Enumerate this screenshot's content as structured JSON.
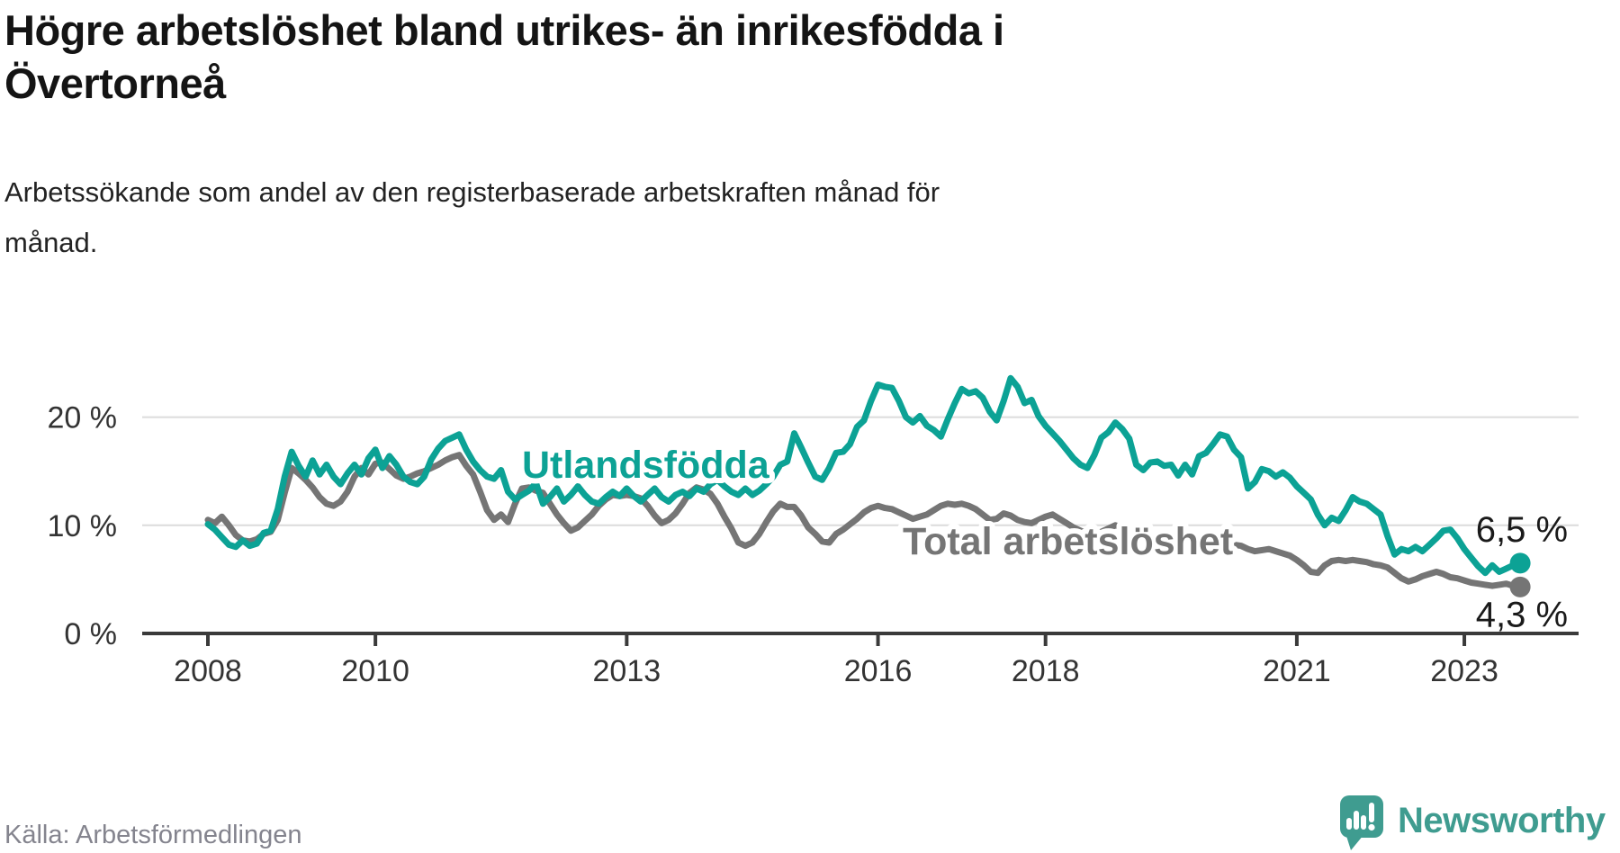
{
  "page": {
    "title_line1": "Högre arbetslöshet bland utrikes- än inrikesfödda i",
    "title_line2": "Övertorneå",
    "subtitle_line1": "Arbetssökande som andel av den registerbaserade arbetskraften månad för",
    "subtitle_line2": "månad.",
    "source": "Källa: Arbetsförmedlingen",
    "branding": "Newsworthy"
  },
  "colors": {
    "accent_teal": "#0ca295",
    "line_gray": "#757575",
    "grid": "#dcdcdc",
    "axis": "#3a3a3a",
    "tick_text": "#333333",
    "value_label_text": "#1a1a1a",
    "brand_teal": "#3f9c90",
    "source_text": "#84848e"
  },
  "chart_data": {
    "type": "line",
    "title": "Högre arbetslöshet bland utrikes- än inrikesfödda i Övertorneå",
    "subtitle": "Arbetssökande som andel av den registerbaserade arbetskraften månad för månad.",
    "xlabel": "",
    "ylabel": "",
    "x_unit": "months",
    "x_start_year": 2008,
    "x_end_label": "sep 2023",
    "ylim": [
      0,
      25
    ],
    "grid": "horizontal",
    "legend_position": "inline-labels",
    "x_ticks": [
      {
        "value": 2008,
        "label": "2008"
      },
      {
        "value": 2010,
        "label": "2010"
      },
      {
        "value": 2013,
        "label": "2013"
      },
      {
        "value": 2016,
        "label": "2016"
      },
      {
        "value": 2018,
        "label": "2018"
      },
      {
        "value": 2021,
        "label": "2021"
      },
      {
        "value": 2023,
        "label": "2023"
      }
    ],
    "y_ticks": [
      {
        "value": 0,
        "label": "0 %"
      },
      {
        "value": 10,
        "label": "10 %"
      },
      {
        "value": 20,
        "label": "20 %"
      }
    ],
    "series": [
      {
        "name": "Utlandsfödda",
        "slug": "utlandsfodda",
        "color": "#0ca295",
        "end_label": "6,5 %",
        "end_value": 6.5,
        "values": [
          10.1,
          9.6,
          8.9,
          8.2,
          8.0,
          8.6,
          8.1,
          8.3,
          9.3,
          9.5,
          11.5,
          14.5,
          16.8,
          15.5,
          14.5,
          16.0,
          14.7,
          15.6,
          14.5,
          13.8,
          14.8,
          15.6,
          14.7,
          16.2,
          17.0,
          15.3,
          16.4,
          15.6,
          14.5,
          14.0,
          13.8,
          14.5,
          16.1,
          17.1,
          17.8,
          18.1,
          18.4,
          17.0,
          15.9,
          15.1,
          14.5,
          14.3,
          15.1,
          13.1,
          12.4,
          12.8,
          13.2,
          13.9,
          12.0,
          12.6,
          13.4,
          12.2,
          12.8,
          13.6,
          12.8,
          12.2,
          12.0,
          12.6,
          13.1,
          12.7,
          13.4,
          12.7,
          12.2,
          12.8,
          13.4,
          12.6,
          12.2,
          12.8,
          13.1,
          12.7,
          13.4,
          13.1,
          13.8,
          14.2,
          13.6,
          13.1,
          12.8,
          13.4,
          12.8,
          13.2,
          13.8,
          14.5,
          15.6,
          15.9,
          18.5,
          17.2,
          15.8,
          14.5,
          14.2,
          15.3,
          16.7,
          16.8,
          17.5,
          19.1,
          19.7,
          21.5,
          23.0,
          22.8,
          22.7,
          21.5,
          20.0,
          19.5,
          20.1,
          19.2,
          18.8,
          18.2,
          19.8,
          21.3,
          22.6,
          22.2,
          22.4,
          21.8,
          20.5,
          19.7,
          21.5,
          23.6,
          22.8,
          21.3,
          21.6,
          20.1,
          19.2,
          18.5,
          17.8,
          17.0,
          16.2,
          15.6,
          15.3,
          16.5,
          18.1,
          18.6,
          19.5,
          18.9,
          18.0,
          15.6,
          15.1,
          15.8,
          15.9,
          15.5,
          15.6,
          14.6,
          15.6,
          14.7,
          16.4,
          16.7,
          17.5,
          18.4,
          18.2,
          17.0,
          16.3,
          13.4,
          14.0,
          15.2,
          15.0,
          14.5,
          14.9,
          14.4,
          13.6,
          13.0,
          12.4,
          11.0,
          10.0,
          10.7,
          10.4,
          11.4,
          12.6,
          12.2,
          12.0,
          11.5,
          11.0,
          9.0,
          7.3,
          7.8,
          7.6,
          8.0,
          7.6,
          8.2,
          8.8,
          9.5,
          9.6,
          8.8,
          7.8,
          7.0,
          6.2,
          5.6,
          6.3,
          5.7,
          6.0,
          6.3,
          6.5
        ]
      },
      {
        "name": "Total arbetslöshet",
        "slug": "total-arbetsloshet",
        "color": "#757575",
        "end_label": "4,3 %",
        "end_value": 4.3,
        "values": [
          10.5,
          10.2,
          10.8,
          10.0,
          9.1,
          8.6,
          8.5,
          8.7,
          9.2,
          9.4,
          10.5,
          13.0,
          15.3,
          14.8,
          14.2,
          13.5,
          12.6,
          12.0,
          11.8,
          12.2,
          13.1,
          14.5,
          15.3,
          14.7,
          15.7,
          15.8,
          15.2,
          14.6,
          14.3,
          14.5,
          14.8,
          15.0,
          15.3,
          15.6,
          16.0,
          16.3,
          16.5,
          15.5,
          14.7,
          13.1,
          11.4,
          10.5,
          11.0,
          10.3,
          12.0,
          13.4,
          13.5,
          13.2,
          13.0,
          12.0,
          11.0,
          10.2,
          9.5,
          9.8,
          10.4,
          11.0,
          11.8,
          12.4,
          12.8,
          12.7,
          12.8,
          12.7,
          12.5,
          11.8,
          10.9,
          10.2,
          10.5,
          11.1,
          12.0,
          13.0,
          13.5,
          13.3,
          12.9,
          12.0,
          10.8,
          9.7,
          8.4,
          8.1,
          8.4,
          9.2,
          10.3,
          11.3,
          12.0,
          11.7,
          11.7,
          10.9,
          9.8,
          9.2,
          8.5,
          8.4,
          9.2,
          9.6,
          10.1,
          10.6,
          11.2,
          11.6,
          11.8,
          11.6,
          11.5,
          11.2,
          10.9,
          10.6,
          10.8,
          11.0,
          11.4,
          11.8,
          12.0,
          11.9,
          12.0,
          11.8,
          11.5,
          11.0,
          10.5,
          10.6,
          11.1,
          10.9,
          10.5,
          10.3,
          10.2,
          10.5,
          10.8,
          11.0,
          10.6,
          10.2,
          9.8,
          9.5,
          9.2,
          9.0,
          9.4,
          9.7,
          10.0,
          9.8,
          9.4,
          9.0,
          8.7,
          8.4,
          8.2,
          8.0,
          7.8,
          7.6,
          7.5,
          7.4,
          7.5,
          7.7,
          7.9,
          8.0,
          8.1,
          8.2,
          8.1,
          7.8,
          7.6,
          7.7,
          7.8,
          7.6,
          7.4,
          7.2,
          6.8,
          6.3,
          5.7,
          5.6,
          6.3,
          6.7,
          6.8,
          6.7,
          6.8,
          6.7,
          6.6,
          6.4,
          6.3,
          6.1,
          5.6,
          5.1,
          4.8,
          5.0,
          5.3,
          5.5,
          5.7,
          5.5,
          5.2,
          5.1,
          4.9,
          4.7,
          4.6,
          4.5,
          4.4,
          4.5,
          4.6,
          4.4,
          4.3
        ]
      }
    ]
  }
}
